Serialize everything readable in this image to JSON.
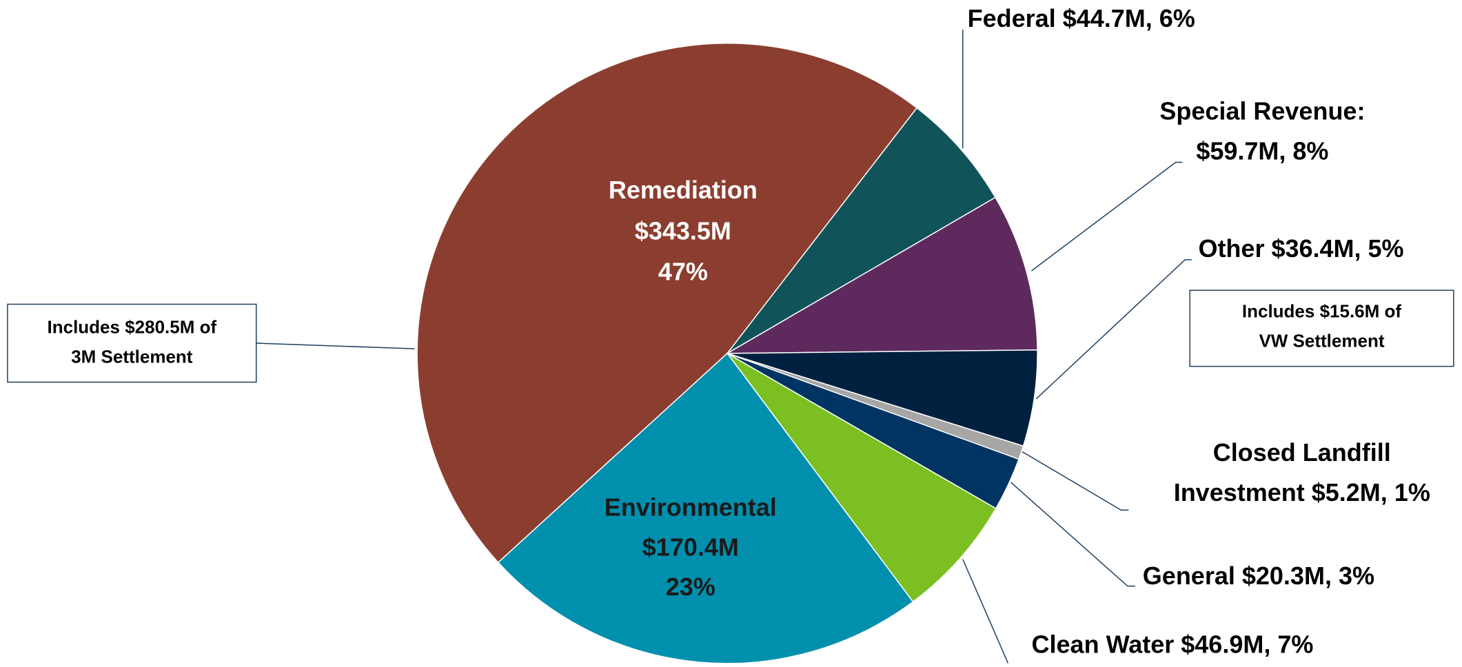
{
  "chart_data": {
    "type": "pie",
    "labels": [
      [
        "Remediation",
        "$343.5M",
        "47%"
      ],
      [
        "Federal $44.7M, 6%"
      ],
      [
        "Special Revenue:",
        "$59.7M, 8%"
      ],
      [
        "Other $36.4M, 5%"
      ],
      [
        "Closed Landfill",
        "Investment $5.2M, 1%"
      ],
      [
        "General $20.3M, 3%"
      ],
      [
        "Clean Water $46.9M, 7%"
      ],
      [
        "Environmental",
        "$170.4M",
        "23%"
      ]
    ],
    "values": [
      343.5,
      44.7,
      59.7,
      36.4,
      5.2,
      20.3,
      46.9,
      170.4
    ],
    "colors": [
      "#8b3e2f",
      "#10545a",
      "#5e2a5e",
      "#00203f",
      "#a6a6a6",
      "#003462",
      "#7bbf23",
      "#0090ad"
    ],
    "annotations": [
      [
        "Includes $280.5M of",
        "3M Settlement"
      ],
      [
        "Includes $15.6M of",
        "VW Settlement"
      ]
    ]
  }
}
